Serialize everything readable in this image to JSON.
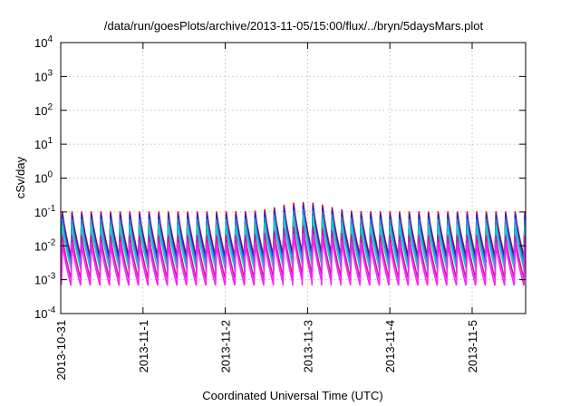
{
  "chart_data": {
    "type": "line",
    "title": "/data/run/goesPlots/archive/2013-11-05/15:00/flux/../bryn/5daysMars.plot",
    "xlabel": "Coordinated Universal Time (UTC)",
    "ylabel": "cSv/day",
    "y_scale": "log",
    "ylim": [
      0.0001,
      10000
    ],
    "y_ticks": [
      {
        "value": 0.0001,
        "base": "10",
        "exp": "-4"
      },
      {
        "value": 0.001,
        "base": "10",
        "exp": "-3"
      },
      {
        "value": 0.01,
        "base": "10",
        "exp": "-2"
      },
      {
        "value": 0.1,
        "base": "10",
        "exp": "-1"
      },
      {
        "value": 1,
        "base": "10",
        "exp": "0"
      },
      {
        "value": 10,
        "base": "10",
        "exp": "1"
      },
      {
        "value": 100,
        "base": "10",
        "exp": "2"
      },
      {
        "value": 1000,
        "base": "10",
        "exp": "3"
      },
      {
        "value": 10000,
        "base": "10",
        "exp": "4"
      }
    ],
    "x_range_days": [
      0,
      5.65
    ],
    "x_ticks": [
      {
        "day": 0,
        "label": "2013-10-31"
      },
      {
        "day": 1,
        "label": "2013-11-1"
      },
      {
        "day": 2,
        "label": "2013-11-2"
      },
      {
        "day": 3,
        "label": "2013-11-3"
      },
      {
        "day": 4,
        "label": "2013-11-4"
      },
      {
        "day": 5,
        "label": "2013-11-5"
      }
    ],
    "grid": true,
    "legend": "none",
    "period_days": 0.1171,
    "series": [
      {
        "color": "#e0000e",
        "peak": 0.1,
        "trough": 0.005
      },
      {
        "color": "#2a1fcf",
        "peak": 0.085,
        "trough": 0.0042
      },
      {
        "color": "#1f8fe0",
        "peak": 0.06,
        "trough": 0.003
      },
      {
        "color": "#20c8c0",
        "peak": 0.04,
        "trough": 0.0022
      },
      {
        "color": "#c020a0",
        "peak": 0.02,
        "trough": 0.0011
      },
      {
        "color": "#ff20ff",
        "peak": 0.012,
        "trough": 0.0007
      }
    ],
    "bump": {
      "center_day": 2.95,
      "width_days": 0.35,
      "factor": 1.9
    }
  }
}
